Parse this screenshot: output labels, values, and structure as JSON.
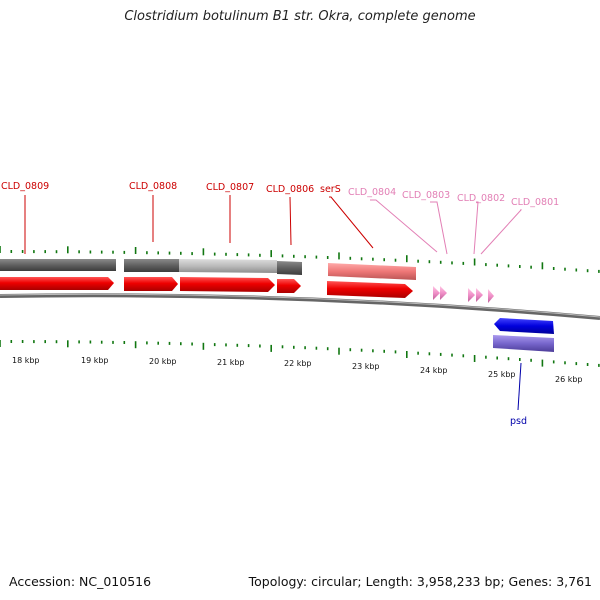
{
  "title": "Clostridium botulinum B1 str. Okra, complete genome",
  "footer": {
    "accession": "Accession: NC_010516",
    "summary": "Topology: circular; Length: 3,958,233 bp; Genes: 3,761"
  },
  "colors": {
    "cds_red": "#ee0000",
    "pink_cds": "#f090c8",
    "blue_cds": "#0000dd",
    "purple_bar": "#7766cc",
    "gray_dark": "#666666",
    "gray_light": "#bbbbbb",
    "salmon": "#ee7777",
    "tick_green": "#117711",
    "label_red": "#cc0000",
    "label_pink": "#e27fb5",
    "label_blue": "#0000aa"
  },
  "scale_labels": [
    "18 kbp",
    "19 kbp",
    "20 kbp",
    "21 kbp",
    "22 kbp",
    "23 kbp",
    "24 kbp",
    "25 kbp",
    "26 kbp"
  ],
  "gene_labels": [
    {
      "text": "CLD_0809",
      "color": "label_red"
    },
    {
      "text": "CLD_0808",
      "color": "label_red"
    },
    {
      "text": "CLD_0807",
      "color": "label_red"
    },
    {
      "text": "CLD_0806",
      "color": "label_red"
    },
    {
      "text": "serS",
      "color": "label_red"
    },
    {
      "text": "CLD_0804",
      "color": "label_pink"
    },
    {
      "text": "CLD_0803",
      "color": "label_pink"
    },
    {
      "text": "CLD_0802",
      "color": "label_pink"
    },
    {
      "text": "CLD_0801",
      "color": "label_pink"
    },
    {
      "text": "psd",
      "color": "label_blue"
    }
  ]
}
